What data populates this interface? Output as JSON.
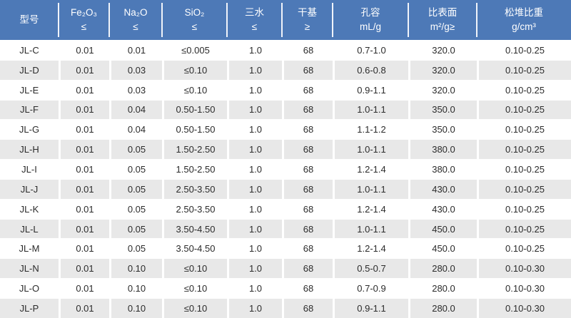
{
  "colors": {
    "header_bg": "#4d79b7",
    "header_text": "#ffffff",
    "row_bg": "#ffffff",
    "row_alt_bg": "#e8e8e8",
    "body_text": "#2b2b2b"
  },
  "table": {
    "columns": [
      {
        "id": "model",
        "label_lines": [
          "型号"
        ]
      },
      {
        "id": "fe2o3",
        "label_lines": [
          "Fe₂O₃",
          "≤"
        ]
      },
      {
        "id": "na2o",
        "label_lines": [
          "Na₂O",
          "≤"
        ]
      },
      {
        "id": "sio2",
        "label_lines": [
          "SiO₂",
          "≤"
        ]
      },
      {
        "id": "trihydrate",
        "label_lines": [
          "三水",
          "≤"
        ]
      },
      {
        "id": "dry-basis",
        "label_lines": [
          "干基",
          "≥"
        ]
      },
      {
        "id": "pore-volume",
        "label_lines": [
          "孔容",
          "mL/g"
        ]
      },
      {
        "id": "surface-area",
        "label_lines": [
          "比表面",
          "m²/g≥"
        ]
      },
      {
        "id": "bulk-density",
        "label_lines": [
          "松堆比重",
          "g/cm³"
        ]
      }
    ],
    "rows": [
      [
        "JL-C",
        "0.01",
        "0.01",
        "≤0.005",
        "1.0",
        "68",
        "0.7-1.0",
        "320.0",
        "0.10-0.25"
      ],
      [
        "JL-D",
        "0.01",
        "0.03",
        "≤0.10",
        "1.0",
        "68",
        "0.6-0.8",
        "320.0",
        "0.10-0.25"
      ],
      [
        "JL-E",
        "0.01",
        "0.03",
        "≤0.10",
        "1.0",
        "68",
        "0.9-1.1",
        "320.0",
        "0.10-0.25"
      ],
      [
        "JL-F",
        "0.01",
        "0.04",
        "0.50-1.50",
        "1.0",
        "68",
        "1.0-1.1",
        "350.0",
        "0.10-0.25"
      ],
      [
        "JL-G",
        "0.01",
        "0.04",
        "0.50-1.50",
        "1.0",
        "68",
        "1.1-1.2",
        "350.0",
        "0.10-0.25"
      ],
      [
        "JL-H",
        "0.01",
        "0.05",
        "1.50-2.50",
        "1.0",
        "68",
        "1.0-1.1",
        "380.0",
        "0.10-0.25"
      ],
      [
        "JL-I",
        "0.01",
        "0.05",
        "1.50-2.50",
        "1.0",
        "68",
        "1.2-1.4",
        "380.0",
        "0.10-0.25"
      ],
      [
        "JL-J",
        "0.01",
        "0.05",
        "2.50-3.50",
        "1.0",
        "68",
        "1.0-1.1",
        "430.0",
        "0.10-0.25"
      ],
      [
        "JL-K",
        "0.01",
        "0.05",
        "2.50-3.50",
        "1.0",
        "68",
        "1.2-1.4",
        "430.0",
        "0.10-0.25"
      ],
      [
        "JL-L",
        "0.01",
        "0.05",
        "3.50-4.50",
        "1.0",
        "68",
        "1.0-1.1",
        "450.0",
        "0.10-0.25"
      ],
      [
        "JL-M",
        "0.01",
        "0.05",
        "3.50-4.50",
        "1.0",
        "68",
        "1.2-1.4",
        "450.0",
        "0.10-0.25"
      ],
      [
        "JL-N",
        "0.01",
        "0.10",
        "≤0.10",
        "1.0",
        "68",
        "0.5-0.7",
        "280.0",
        "0.10-0.30"
      ],
      [
        "JL-O",
        "0.01",
        "0.10",
        "≤0.10",
        "1.0",
        "68",
        "0.7-0.9",
        "280.0",
        "0.10-0.30"
      ],
      [
        "JL-P",
        "0.01",
        "0.10",
        "≤0.10",
        "1.0",
        "68",
        "0.9-1.1",
        "280.0",
        "0.10-0.30"
      ]
    ]
  }
}
